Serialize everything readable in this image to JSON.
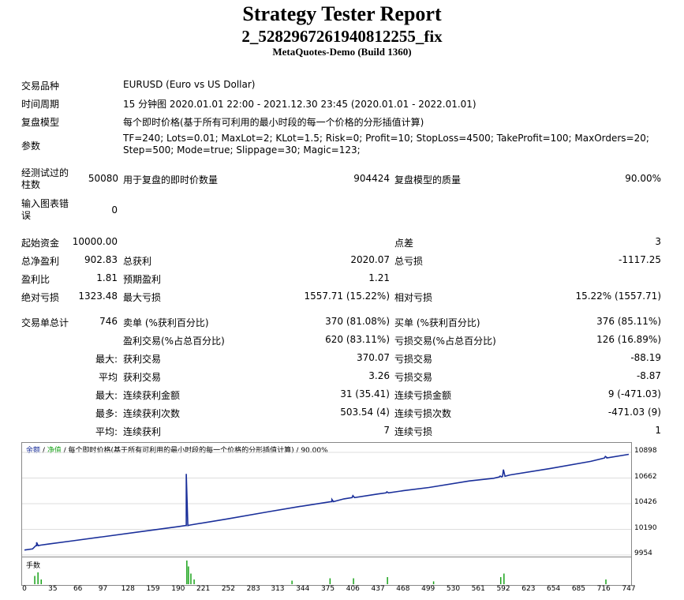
{
  "header": {
    "title": "Strategy Tester Report",
    "subtitle": "2_5282967261940812255_fix",
    "build": "MetaQuotes-Demo (Build 1360)"
  },
  "settings": [
    {
      "label": "交易品种",
      "value": "EURUSD (Euro vs US Dollar)"
    },
    {
      "label": "时间周期",
      "value": "15 分钟图 2020.01.01 22:00 - 2021.12.30 23:45 (2020.01.01 - 2022.01.01)"
    },
    {
      "label": "复盘模型",
      "value": "每个即时价格(基于所有可利用的最小时段的每一个价格的分形插值计算)"
    },
    {
      "label": "参数",
      "value": "TF=240; Lots=0.01; MaxLot=2; KLot=1.5; Risk=0; Profit=10; StopLoss=4500; TakeProfit=100; MaxOrders=20; Step=500; Mode=true; Slippage=30; Magic=123;"
    }
  ],
  "bars": {
    "label": "经测试过的柱数",
    "value": "50080",
    "ticks_label": "用于复盘的即时价数量",
    "ticks_value": "904424",
    "quality_label": "复盘模型的质量",
    "quality_value": "90.00%"
  },
  "errors": {
    "label": "输入图表错误",
    "value": "0"
  },
  "stats": {
    "deposit_label": "起始资金",
    "deposit": "10000.00",
    "spread_label": "点差",
    "spread": "3",
    "net_label": "总净盈利",
    "net": "902.83",
    "gross_profit_label": "总获利",
    "gross_profit": "2020.07",
    "gross_loss_label": "总亏损",
    "gross_loss": "-1117.25",
    "pf_label": "盈利比",
    "pf": "1.81",
    "ep_label": "预期盈利",
    "ep": "1.21",
    "abs_dd_label": "绝对亏损",
    "abs_dd": "1323.48",
    "max_dd_label": "最大亏损",
    "max_dd": "1557.71 (15.22%)",
    "rel_dd_label": "相对亏损",
    "rel_dd": "15.22% (1557.71)",
    "total_label": "交易单总计",
    "total": "746",
    "short_label": "卖单 (%获利百分比)",
    "short": "370 (81.08%)",
    "long_label": "买单 (%获利百分比)",
    "long": "376 (85.11%)",
    "profit_trades_label": "盈利交易(%占总百分比)",
    "profit_trades": "620 (83.11%)",
    "loss_trades_label": "亏损交易(%占总百分比)",
    "loss_trades": "126 (16.89%)",
    "max_prefix": "最大:",
    "avg_prefix": "平均",
    "max2_prefix": "最大:",
    "most_prefix": "最多:",
    "avg2_prefix": "平均:",
    "largest_profit_label": "获利交易",
    "largest_profit": "370.07",
    "largest_loss_label": "亏损交易",
    "largest_loss": "-88.19",
    "avg_profit_label": "获利交易",
    "avg_profit": "3.26",
    "avg_loss_label": "亏损交易",
    "avg_loss": "-8.87",
    "max_cons_wins_label": "连续获利金额",
    "max_cons_wins": "31 (35.41)",
    "max_cons_losses_label": "连续亏损金额",
    "max_cons_losses": "9 (-471.03)",
    "max_cons_profit_label": "连续获利次数",
    "max_cons_profit": "503.54 (4)",
    "max_cons_loss_label": "连续亏损次数",
    "max_cons_loss": "-471.03 (9)",
    "avg_cons_wins_label": "连续获利",
    "avg_cons_wins": "7",
    "avg_cons_losses_label": "连续亏损",
    "avg_cons_losses": "1"
  },
  "chart_legend": {
    "balance": "余额",
    "sep1": " / ",
    "equity": "净值",
    "rest": " / 每个即时价格(基于所有可利用的最小时段的每一个价格的分形插值计算) / 90.00%"
  },
  "volume_label": "手数",
  "colors": {
    "balance": "#1a2f9a",
    "equity": "#1aa31a",
    "volume": "#1aa31a"
  },
  "chart_data": {
    "type": "line",
    "y_ticks": [
      "10898",
      "10662",
      "10426",
      "10190",
      "9954"
    ],
    "x_ticks": [
      "0",
      "35",
      "66",
      "97",
      "128",
      "159",
      "190",
      "221",
      "252",
      "283",
      "313",
      "344",
      "375",
      "406",
      "437",
      "468",
      "499",
      "530",
      "561",
      "592",
      "623",
      "654",
      "685",
      "716",
      "747"
    ],
    "ylim": [
      9954,
      10898
    ],
    "xlim": [
      0,
      747
    ],
    "balance": {
      "x": [
        0,
        10,
        15,
        20,
        30,
        60,
        100,
        150,
        190,
        200,
        205,
        250,
        300,
        340,
        375,
        380,
        395,
        437,
        468,
        500,
        550,
        580,
        600,
        650,
        700,
        720,
        747
      ],
      "y": [
        10000,
        10010,
        10040,
        10045,
        10055,
        10085,
        10125,
        10175,
        10215,
        10225,
        10230,
        10285,
        10350,
        10400,
        10440,
        10445,
        10470,
        10515,
        10545,
        10575,
        10635,
        10660,
        10690,
        10750,
        10815,
        10850,
        10880
      ]
    },
    "equity_spikes": [
      {
        "x": 15,
        "y": 10070
      },
      {
        "x": 200,
        "y": 10700
      },
      {
        "x": 380,
        "y": 10465
      },
      {
        "x": 406,
        "y": 10500
      },
      {
        "x": 448,
        "y": 10535
      },
      {
        "x": 588,
        "y": 10680
      },
      {
        "x": 592,
        "y": 10740
      },
      {
        "x": 718,
        "y": 10860
      }
    ],
    "volume": [
      {
        "x": 12,
        "h": 0.35
      },
      {
        "x": 16,
        "h": 0.5
      },
      {
        "x": 20,
        "h": 0.2
      },
      {
        "x": 200,
        "h": 1.0
      },
      {
        "x": 202,
        "h": 0.75
      },
      {
        "x": 205,
        "h": 0.45
      },
      {
        "x": 209,
        "h": 0.2
      },
      {
        "x": 330,
        "h": 0.15
      },
      {
        "x": 377,
        "h": 0.25
      },
      {
        "x": 406,
        "h": 0.25
      },
      {
        "x": 448,
        "h": 0.3
      },
      {
        "x": 505,
        "h": 0.12
      },
      {
        "x": 588,
        "h": 0.3
      },
      {
        "x": 592,
        "h": 0.45
      },
      {
        "x": 718,
        "h": 0.2
      }
    ]
  }
}
